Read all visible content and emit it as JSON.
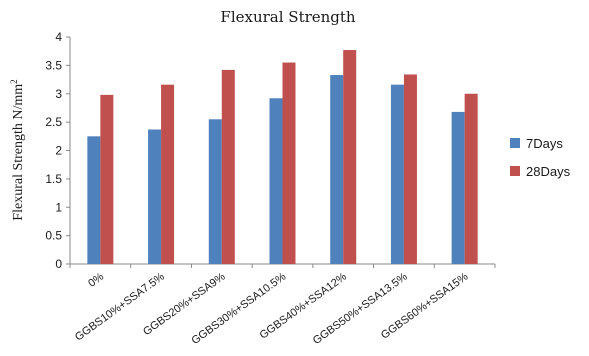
{
  "chart_data": {
    "type": "bar",
    "title": "Flexural Strength",
    "xlabel": "",
    "ylabel": "Flexural Strength N/mm",
    "ylabel_sup": "2",
    "ylim": [
      0,
      4
    ],
    "yticks": [
      "0",
      "0.5",
      "1",
      "1.5",
      "2",
      "2.5",
      "3",
      "3.5",
      "4"
    ],
    "categories": [
      "0%",
      "GGBS10%+SSA7.5%",
      "GGBS20%+SSA9%",
      "GGBS30%+SSA10.5%",
      "GGBS40%+SSA12%",
      "GGBS50%+SSA13.5%",
      "GGBS60%+SSA15%"
    ],
    "series": [
      {
        "name": "7Days",
        "color": "#4f81bd",
        "values": [
          2.25,
          2.37,
          2.55,
          2.92,
          3.33,
          3.16,
          2.68
        ]
      },
      {
        "name": "28Days",
        "color": "#c0504d",
        "values": [
          2.98,
          3.16,
          3.42,
          3.55,
          3.77,
          3.34,
          3.0
        ]
      }
    ],
    "grid": false,
    "legend": "right"
  }
}
